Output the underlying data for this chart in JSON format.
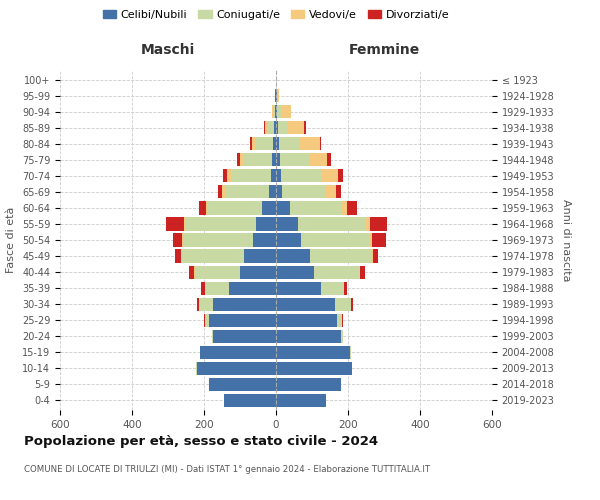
{
  "age_groups": [
    "0-4",
    "5-9",
    "10-14",
    "15-19",
    "20-24",
    "25-29",
    "30-34",
    "35-39",
    "40-44",
    "45-49",
    "50-54",
    "55-59",
    "60-64",
    "65-69",
    "70-74",
    "75-79",
    "80-84",
    "85-89",
    "90-94",
    "95-99",
    "100+"
  ],
  "birth_years": [
    "2019-2023",
    "2014-2018",
    "2009-2013",
    "2004-2008",
    "1999-2003",
    "1994-1998",
    "1989-1993",
    "1984-1988",
    "1979-1983",
    "1974-1978",
    "1969-1973",
    "1964-1968",
    "1959-1963",
    "1954-1958",
    "1949-1953",
    "1944-1948",
    "1939-1943",
    "1934-1938",
    "1929-1933",
    "1924-1928",
    "≤ 1923"
  ],
  "maschi_celibi": [
    145,
    185,
    220,
    210,
    175,
    185,
    175,
    130,
    100,
    90,
    65,
    55,
    40,
    20,
    15,
    10,
    8,
    5,
    3,
    2,
    0
  ],
  "maschi_coniugati": [
    0,
    0,
    2,
    2,
    3,
    10,
    38,
    65,
    125,
    170,
    190,
    195,
    150,
    120,
    110,
    80,
    50,
    20,
    5,
    2,
    0
  ],
  "maschi_vedovi": [
    0,
    0,
    0,
    0,
    0,
    2,
    2,
    2,
    2,
    5,
    5,
    5,
    5,
    10,
    12,
    10,
    10,
    5,
    3,
    0,
    0
  ],
  "maschi_divorziati": [
    0,
    0,
    0,
    0,
    0,
    3,
    5,
    10,
    15,
    15,
    25,
    50,
    20,
    10,
    10,
    8,
    3,
    3,
    0,
    0,
    0
  ],
  "femmine_nubili": [
    140,
    180,
    210,
    205,
    180,
    170,
    165,
    125,
    105,
    95,
    70,
    60,
    40,
    18,
    15,
    10,
    8,
    5,
    3,
    2,
    0
  ],
  "femmine_coniugate": [
    0,
    0,
    2,
    2,
    5,
    12,
    42,
    60,
    125,
    170,
    190,
    190,
    140,
    118,
    112,
    82,
    58,
    28,
    10,
    2,
    0
  ],
  "femmine_vedove": [
    0,
    0,
    0,
    0,
    0,
    2,
    2,
    3,
    3,
    5,
    8,
    10,
    18,
    30,
    45,
    50,
    55,
    45,
    30,
    5,
    0
  ],
  "femmine_divorziate": [
    0,
    0,
    0,
    0,
    0,
    3,
    5,
    10,
    14,
    14,
    38,
    48,
    28,
    14,
    15,
    10,
    5,
    5,
    0,
    0,
    0
  ],
  "colors": {
    "celibi": "#4472a8",
    "coniugati": "#c8d9a4",
    "vedovi": "#f5c97e",
    "divorziati": "#cc2222"
  },
  "title": "Popolazione per età, sesso e stato civile - 2024",
  "subtitle": "COMUNE DI LOCATE DI TRIULZI (MI) - Dati ISTAT 1° gennaio 2024 - Elaborazione TUTTITALIA.IT",
  "xlabel_left": "Maschi",
  "xlabel_right": "Femmine",
  "ylabel_left": "Fasce di età",
  "ylabel_right": "Anni di nascita",
  "xlim": 600,
  "legend_labels": [
    "Celibi/Nubili",
    "Coniugati/e",
    "Vedovi/e",
    "Divorziati/e"
  ],
  "background_color": "#ffffff"
}
